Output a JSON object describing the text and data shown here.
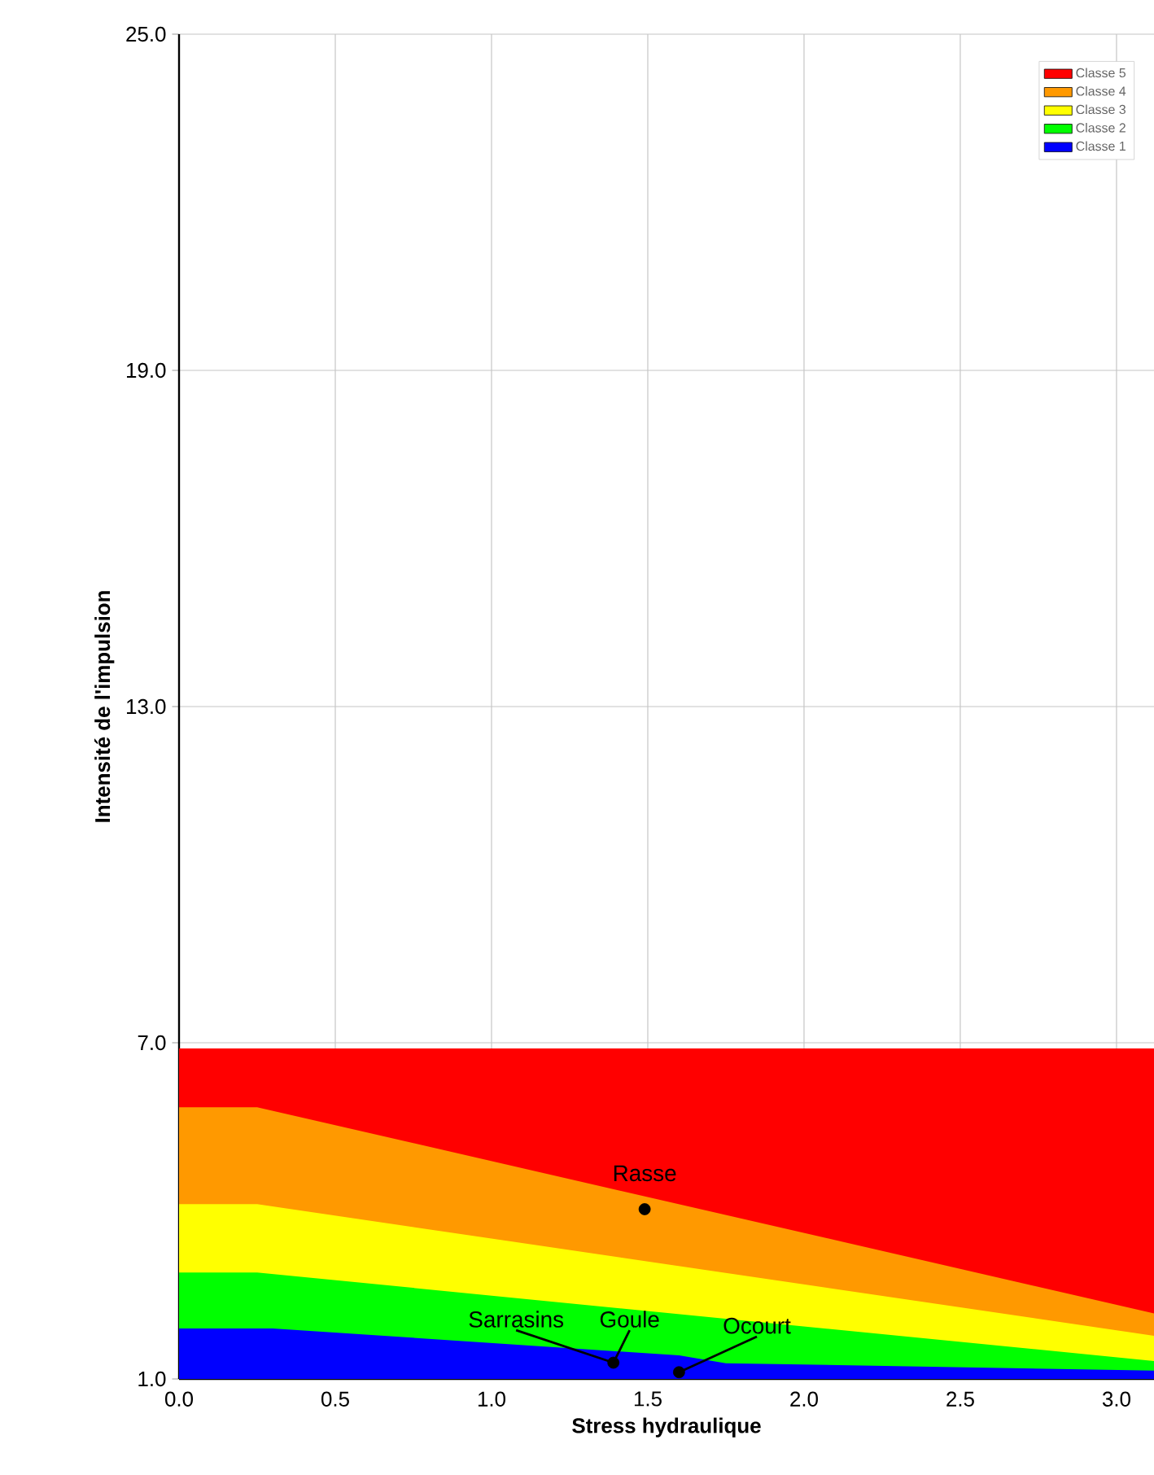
{
  "chart_data": {
    "type": "area",
    "xlabel": "Stress hydraulique",
    "ylabel": "Intensité de l'impulsion",
    "xlim": [
      0,
      3.12
    ],
    "ylim": [
      1,
      25
    ],
    "xticks": [
      {
        "value": 0,
        "label": "0.0"
      },
      0.5,
      {
        "value": 1,
        "label": "1.0"
      },
      1.5,
      {
        "value": 2,
        "label": "2.0"
      },
      2.5,
      {
        "value": 3,
        "label": "3.0"
      }
    ],
    "yticks": [
      {
        "value": 1,
        "label": "1.0"
      },
      {
        "value": 7,
        "label": "7.0"
      },
      {
        "value": 13,
        "label": "13.0"
      },
      {
        "value": 19,
        "label": "19.0"
      },
      {
        "value": 25,
        "label": "25.0"
      }
    ],
    "grid": true,
    "legend": "top right",
    "series": [
      {
        "name": "Classe 1",
        "color": "#0000ff",
        "x": [
          0,
          0.3,
          1.6,
          1.75,
          3.12
        ],
        "values": [
          1.9,
          1.9,
          1.42,
          1.28,
          1.15
        ]
      },
      {
        "name": "Classe 2",
        "color": "#00ff00",
        "x": [
          0,
          0.25,
          3.12
        ],
        "values": [
          2.9,
          2.9,
          1.32
        ]
      },
      {
        "name": "Classe 3",
        "color": "#ffff00",
        "x": [
          0,
          0.25,
          3.12
        ],
        "values": [
          4.12,
          4.12,
          1.77
        ]
      },
      {
        "name": "Classe 4",
        "color": "#ff9900",
        "x": [
          0,
          0.25,
          3.12
        ],
        "values": [
          5.85,
          5.85,
          2.17
        ]
      },
      {
        "name": "Classe 5",
        "color": "#ff0000",
        "x": [
          0,
          3.12
        ],
        "values": [
          6.9,
          6.9
        ]
      },
      {
        "type": "scatter",
        "color": "#000000",
        "marker": "circle",
        "x": [
          1.49,
          1.39,
          1.6
        ],
        "values": [
          4.03,
          1.29,
          1.12
        ]
      }
    ],
    "annotations": [
      {
        "text": "Rasse",
        "x": 1.49,
        "y": 4.03
      },
      {
        "text": "Sarrasins",
        "x": 1.39,
        "y": 1.29
      },
      {
        "text": "Goule",
        "x": 1.39,
        "y": 1.29
      },
      {
        "text": "Ocourt",
        "x": 1.6,
        "y": 1.12
      }
    ]
  }
}
